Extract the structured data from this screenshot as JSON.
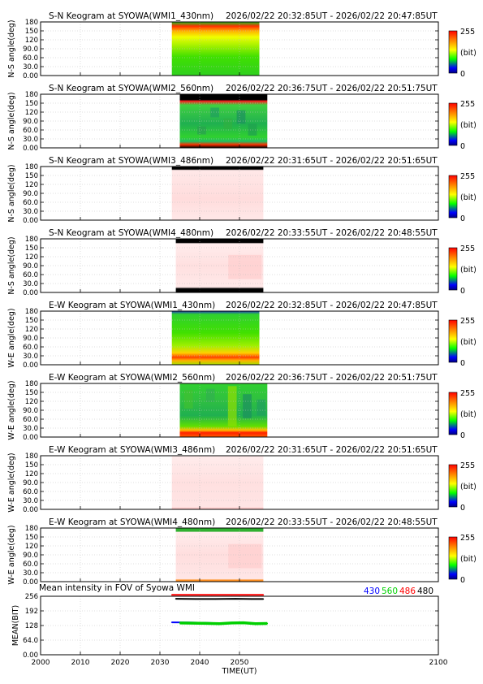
{
  "figure": {
    "x_axis_label": "TIME(UT)",
    "x_ticks": [
      "2000",
      "2010",
      "2020",
      "2030",
      "2040",
      "2050",
      "2100"
    ],
    "xlim": [
      2000,
      2100
    ]
  },
  "keogram_y_ticks": [
    "180",
    "150",
    "120",
    "90.0",
    "60.0",
    "30.0",
    "0.00"
  ],
  "colorbar": {
    "max_label": "255",
    "unit_label": "(bit)",
    "min_label": "0"
  },
  "colors": {
    "background": "#ffffff",
    "axis": "#000000",
    "grid": "#bfbfbf"
  },
  "chart_data": [
    {
      "type": "heatmap",
      "title": "S-N Keogram at SYOWA(WMI1_430nm)",
      "time_range": "2026/02/22 20:32:85UT - 2026/02/22 20:47:85UT",
      "ylabel": "N-S angle(deg)",
      "ylim": [
        0,
        180
      ],
      "x_range": [
        2033,
        2055
      ],
      "cmap": "rainbow",
      "clim": [
        0,
        255
      ],
      "appearance": "mostly green with yellow/orange/red band near top"
    },
    {
      "type": "heatmap",
      "title": "S-N Keogram at SYOWA(WMI2_560nm)",
      "time_range": "2026/02/22 20:36:75UT - 2026/02/22 20:51:75UT",
      "ylabel": "N-S angle(deg)",
      "ylim": [
        0,
        180
      ],
      "x_range": [
        2035,
        2057
      ],
      "cmap": "rainbow",
      "clim": [
        0,
        255
      ],
      "appearance": "green with blue blocks, black at top"
    },
    {
      "type": "heatmap",
      "title": "S-N Keogram at SYOWA(WMI3_486nm)",
      "time_range": "2026/02/22 20:31:65UT - 2026/02/22 20:51:65UT",
      "ylabel": "N-S angle(deg)",
      "ylim": [
        0,
        180
      ],
      "x_range": [
        2033,
        2056
      ],
      "cmap": "rainbow",
      "clim": [
        0,
        255
      ],
      "appearance": "pale pink, black at top"
    },
    {
      "type": "heatmap",
      "title": "S-N Keogram at SYOWA(WMI4_480nm)",
      "time_range": "2026/02/22 20:33:55UT - 2026/02/22 20:48:55UT",
      "ylabel": "N-S angle(deg)",
      "ylim": [
        0,
        180
      ],
      "x_range": [
        2034,
        2056
      ],
      "cmap": "rainbow",
      "clim": [
        0,
        255
      ],
      "appearance": "pale pink, black at top and bottom"
    },
    {
      "type": "heatmap",
      "title": "E-W Keogram at SYOWA(WMI1_430nm)",
      "time_range": "2026/02/22 20:32:85UT - 2026/02/22 20:47:85UT",
      "ylabel": "W-E angle(deg)",
      "ylim": [
        0,
        180
      ],
      "x_range": [
        2033,
        2055
      ],
      "cmap": "rainbow",
      "clim": [
        0,
        255
      ],
      "appearance": "green with yellow, red band near bottom"
    },
    {
      "type": "heatmap",
      "title": "E-W Keogram at SYOWA(WMI2_560nm)",
      "time_range": "2026/02/22 20:36:75UT - 2026/02/22 20:51:75UT",
      "ylabel": "W-E angle(deg)",
      "ylim": [
        0,
        180
      ],
      "x_range": [
        2035,
        2057
      ],
      "cmap": "rainbow",
      "clim": [
        0,
        255
      ],
      "appearance": "green with blue, red band near bottom"
    },
    {
      "type": "heatmap",
      "title": "E-W Keogram at SYOWA(WMI3_486nm)",
      "time_range": "2026/02/22 20:31:65UT - 2026/02/22 20:51:65UT",
      "ylabel": "W-E angle(deg)",
      "ylim": [
        0,
        180
      ],
      "x_range": [
        2033,
        2056
      ],
      "cmap": "rainbow",
      "clim": [
        0,
        255
      ],
      "appearance": "pale pink"
    },
    {
      "type": "heatmap",
      "title": "E-W Keogram at SYOWA(WMI4_480nm)",
      "time_range": "2026/02/22 20:33:55UT - 2026/02/22 20:48:55UT",
      "ylabel": "W-E angle(deg)",
      "ylim": [
        0,
        180
      ],
      "x_range": [
        2034,
        2056
      ],
      "cmap": "rainbow",
      "clim": [
        0,
        255
      ],
      "appearance": "pale pink, green line at top"
    },
    {
      "type": "line",
      "title": "Mean intensity in FOV of Syowa WMI",
      "ylabel": "MEAN(BIT)",
      "ylim": [
        0,
        256
      ],
      "y_ticks": [
        "256",
        "192",
        "128",
        "64.0",
        "0.00"
      ],
      "legend_position": "top-right",
      "series": [
        {
          "name": "430",
          "color": "#0000ff",
          "x": [
            2033,
            2037,
            2041,
            2045,
            2049,
            2052,
            2055
          ],
          "y": [
            142,
            141,
            140,
            138,
            139,
            138,
            136
          ]
        },
        {
          "name": "560",
          "color": "#00d000",
          "x": [
            2035,
            2040,
            2045,
            2048,
            2051,
            2054,
            2057
          ],
          "y": [
            139,
            138,
            136,
            139,
            140,
            136,
            137
          ]
        },
        {
          "name": "486",
          "color": "#ff0000",
          "x": [
            2033,
            2038,
            2043,
            2048,
            2052,
            2056
          ],
          "y": [
            262,
            262,
            262,
            262,
            262,
            262
          ]
        },
        {
          "name": "480",
          "color": "#000000",
          "x": [
            2034,
            2039,
            2044,
            2049,
            2053,
            2056
          ],
          "y": [
            245,
            244,
            244,
            245,
            244,
            244
          ]
        }
      ]
    }
  ]
}
